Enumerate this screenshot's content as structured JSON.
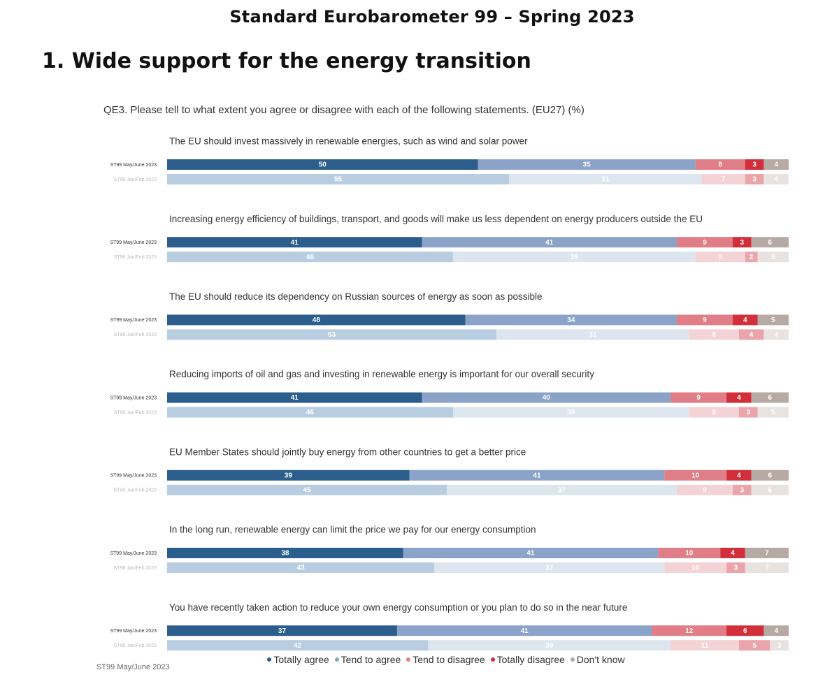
{
  "header": {
    "title": "Standard Eurobarometer 99 – Spring 2023",
    "section_title": "1. Wide support for the energy transition"
  },
  "footer": {
    "source": "ST99 May/June 2023"
  },
  "colors": {
    "current": [
      "#2b5e8c",
      "#8ba3c9",
      "#e07d87",
      "#d22f3a",
      "#b7a9a4"
    ],
    "previous": [
      "#b9cde0",
      "#dde5ee",
      "#f3d3d6",
      "#eaa5ab",
      "#e8e3e1"
    ]
  },
  "chart_data": {
    "type": "bar",
    "orientation": "horizontal",
    "stacked": true,
    "title": "QE3. Please tell to what extent you agree or disagree with each of the following statements. (EU27) (%)",
    "legend": [
      "Totally agree",
      "Tend to agree",
      "Tend to disagree",
      "Totally disagree",
      "Don't know"
    ],
    "row_labels": [
      "ST99 May/June 2023",
      "ST98 Jan/Feb 2023"
    ],
    "groups": [
      {
        "statement": "The EU should invest massively in renewable energies, such as wind and solar power",
        "current": [
          50,
          35,
          8,
          3,
          4
        ],
        "previous": [
          55,
          31,
          7,
          3,
          4
        ]
      },
      {
        "statement": "Increasing energy efficiency of buildings, transport, and goods will make us less dependent on energy producers outside the EU",
        "current": [
          41,
          41,
          9,
          3,
          6
        ],
        "previous": [
          46,
          39,
          8,
          2,
          5
        ]
      },
      {
        "statement": "The EU should reduce its dependency on Russian sources of energy as soon as possible",
        "current": [
          48,
          34,
          9,
          4,
          5
        ],
        "previous": [
          53,
          31,
          8,
          4,
          4
        ]
      },
      {
        "statement": "Reducing imports of oil and gas and investing in renewable energy is important for our overall security",
        "current": [
          41,
          40,
          9,
          4,
          6
        ],
        "previous": [
          46,
          38,
          8,
          3,
          5
        ]
      },
      {
        "statement": "EU Member States should jointly buy energy from other countries to get a better price",
        "current": [
          39,
          41,
          10,
          4,
          6
        ],
        "previous": [
          45,
          37,
          9,
          3,
          6
        ]
      },
      {
        "statement": "In the long run, renewable energy can limit the price we pay for our energy consumption",
        "current": [
          38,
          41,
          10,
          4,
          7
        ],
        "previous": [
          43,
          37,
          10,
          3,
          7
        ]
      },
      {
        "statement": "You have recently taken action to reduce your own energy consumption or you plan to do so in the near future",
        "current": [
          37,
          41,
          12,
          6,
          4
        ],
        "previous": [
          42,
          39,
          11,
          5,
          3
        ]
      }
    ]
  }
}
